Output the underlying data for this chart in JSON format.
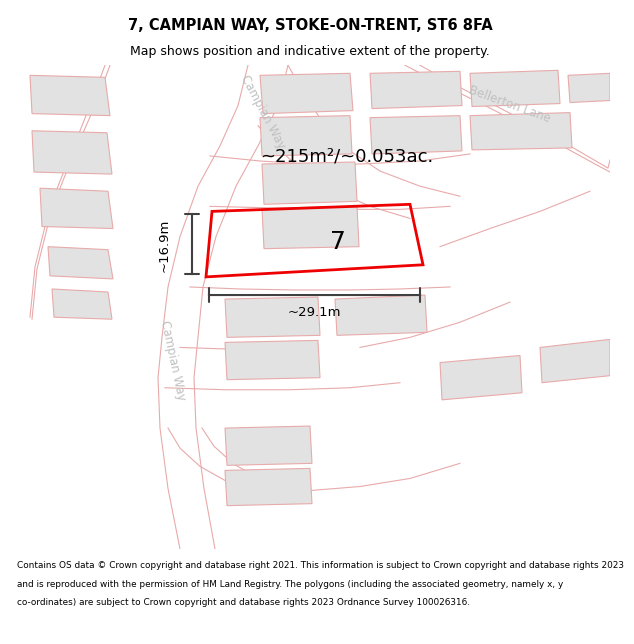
{
  "title_line1": "7, CAMPIAN WAY, STOKE-ON-TRENT, ST6 8FA",
  "title_line2": "Map shows position and indicative extent of the property.",
  "area_label": "~215m²/~0.053ac.",
  "width_label": "~29.1m",
  "height_label": "~16.9m",
  "plot_number": "7",
  "road_label_campian_top": "Campian Way",
  "road_label_campian_bottom": "Campian Way",
  "road_label_bellerton": "Bellerton Lane",
  "footer_lines": [
    "Contains OS data © Crown copyright and database right 2021. This information is subject to Crown copyright and database rights 2023",
    "and is reproduced with the permission of HM Land Registry. The polygons (including the associated geometry, namely x, y",
    "co-ordinates) are subject to Crown copyright and database rights 2023 Ordnance Survey 100026316."
  ],
  "bg_color": "#f7f7f5",
  "road_color": "#ffffff",
  "building_color": "#e2e2e2",
  "plot_outline_color": "#ee0000",
  "road_edge_color": "#e8aaaa",
  "dim_color": "#404040",
  "road_label_color": "#c0c0c0",
  "title_fontsize": 10.5,
  "subtitle_fontsize": 9,
  "footer_fontsize": 6.4,
  "area_fontsize": 13,
  "dim_fontsize": 9.5,
  "road_label_fontsize": 8.5,
  "number_fontsize": 18
}
